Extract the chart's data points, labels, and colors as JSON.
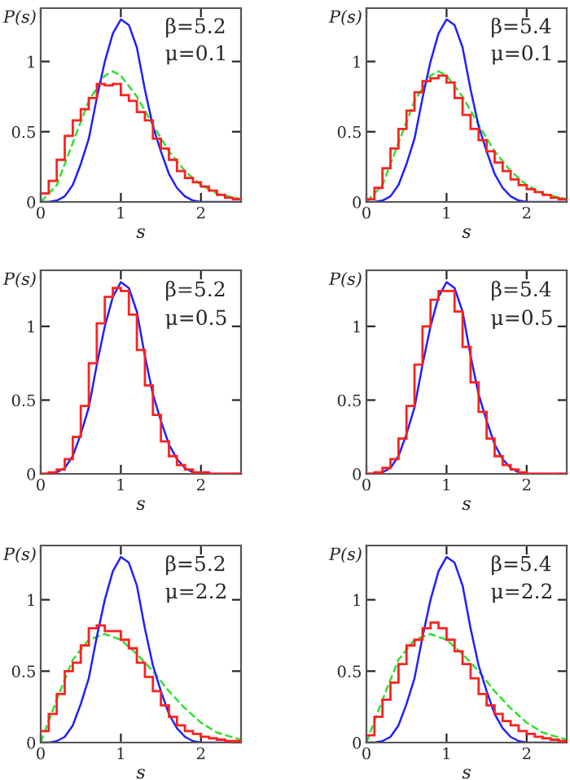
{
  "chart_data": [
    {
      "type": "histogram",
      "xlabel": "s",
      "ylabel": "P(s)",
      "annotations": [
        "β=5.2",
        "μ=0.1"
      ],
      "xlim": [
        0,
        2.5
      ],
      "ylim": [
        0,
        1.38
      ],
      "xticks": [
        0,
        1,
        2
      ],
      "yticks": [
        0,
        0.5,
        1
      ],
      "line_style": "solid",
      "series": [
        {
          "type": "histogram",
          "color": "#ff2020",
          "bins": [
            0,
            0.1,
            0.2,
            0.3,
            0.4,
            0.5,
            0.6,
            0.7,
            0.8,
            0.9,
            1.0,
            1.1,
            1.2,
            1.3,
            1.4,
            1.5,
            1.6,
            1.7,
            1.8,
            1.9,
            2.0,
            2.1,
            2.2,
            2.3,
            2.4,
            2.5
          ],
          "values": [
            0.06,
            0.15,
            0.3,
            0.47,
            0.58,
            0.66,
            0.74,
            0.84,
            0.83,
            0.84,
            0.76,
            0.72,
            0.64,
            0.58,
            0.45,
            0.38,
            0.3,
            0.22,
            0.17,
            0.14,
            0.11,
            0.08,
            0.05,
            0.03,
            0.02
          ]
        },
        {
          "type": "line",
          "color": "#30e030",
          "line_style": "dashed",
          "x": [
            0,
            0.2,
            0.4,
            0.6,
            0.8,
            0.9,
            1.0,
            1.2,
            1.4,
            1.6,
            1.8,
            2.0,
            2.2,
            2.5
          ],
          "values": [
            0,
            0.12,
            0.42,
            0.72,
            0.9,
            0.93,
            0.9,
            0.75,
            0.55,
            0.36,
            0.22,
            0.12,
            0.06,
            0.02
          ]
        },
        {
          "type": "line",
          "color": "#2020ff",
          "x": [
            0,
            0.1,
            0.2,
            0.3,
            0.4,
            0.5,
            0.6,
            0.7,
            0.8,
            0.9,
            1.0,
            1.1,
            1.2,
            1.3,
            1.4,
            1.5,
            1.6,
            1.7,
            1.8,
            1.9,
            2.0,
            2.5
          ],
          "values": [
            0,
            0,
            0.01,
            0.04,
            0.12,
            0.27,
            0.45,
            0.74,
            1.0,
            1.2,
            1.3,
            1.26,
            1.1,
            0.8,
            0.54,
            0.36,
            0.2,
            0.1,
            0.04,
            0.01,
            0,
            0
          ]
        }
      ]
    },
    {
      "type": "histogram",
      "xlabel": "s",
      "ylabel": "P(s)",
      "annotations": [
        "β=5.4",
        "μ=0.1"
      ],
      "xlim": [
        0,
        2.5
      ],
      "ylim": [
        0,
        1.38
      ],
      "xticks": [
        0,
        1,
        2
      ],
      "yticks": [
        0,
        0.5,
        1
      ],
      "line_style": "solid",
      "series": [
        {
          "type": "histogram",
          "color": "#ff2020",
          "bins": [
            0,
            0.1,
            0.2,
            0.3,
            0.4,
            0.5,
            0.6,
            0.7,
            0.8,
            0.9,
            1.0,
            1.1,
            1.2,
            1.3,
            1.4,
            1.5,
            1.6,
            1.7,
            1.8,
            1.9,
            2.0,
            2.1,
            2.2,
            2.3,
            2.4,
            2.5
          ],
          "values": [
            0.02,
            0.1,
            0.24,
            0.38,
            0.52,
            0.65,
            0.78,
            0.86,
            0.88,
            0.9,
            0.85,
            0.74,
            0.62,
            0.52,
            0.44,
            0.36,
            0.28,
            0.22,
            0.16,
            0.12,
            0.09,
            0.07,
            0.05,
            0.03,
            0.02
          ]
        },
        {
          "type": "line",
          "color": "#30e030",
          "line_style": "dashed",
          "x": [
            0,
            0.2,
            0.4,
            0.6,
            0.8,
            0.9,
            1.0,
            1.2,
            1.4,
            1.6,
            1.8,
            2.0,
            2.2,
            2.5
          ],
          "values": [
            0,
            0.12,
            0.42,
            0.72,
            0.9,
            0.93,
            0.9,
            0.75,
            0.55,
            0.36,
            0.22,
            0.12,
            0.06,
            0.02
          ]
        },
        {
          "type": "line",
          "color": "#2020ff",
          "x": [
            0,
            0.1,
            0.2,
            0.3,
            0.4,
            0.5,
            0.6,
            0.7,
            0.8,
            0.9,
            1.0,
            1.1,
            1.2,
            1.3,
            1.4,
            1.5,
            1.6,
            1.7,
            1.8,
            1.9,
            2.0,
            2.5
          ],
          "values": [
            0,
            0,
            0.01,
            0.04,
            0.12,
            0.27,
            0.45,
            0.74,
            1.0,
            1.2,
            1.3,
            1.26,
            1.1,
            0.8,
            0.54,
            0.36,
            0.2,
            0.1,
            0.04,
            0.01,
            0,
            0
          ]
        }
      ]
    },
    {
      "type": "histogram",
      "xlabel": "s",
      "ylabel": "P(s)",
      "annotations": [
        "β=5.2",
        "μ=0.5"
      ],
      "xlim": [
        0,
        2.5
      ],
      "ylim": [
        0,
        1.38
      ],
      "xticks": [
        0,
        1,
        2
      ],
      "yticks": [
        0,
        0.5,
        1
      ],
      "line_style": "solid",
      "series": [
        {
          "type": "histogram",
          "color": "#ff2020",
          "bins": [
            0,
            0.1,
            0.2,
            0.3,
            0.4,
            0.5,
            0.6,
            0.7,
            0.8,
            0.9,
            1.0,
            1.1,
            1.2,
            1.3,
            1.4,
            1.5,
            1.6,
            1.7,
            1.8,
            1.9,
            2.0,
            2.1,
            2.2,
            2.3,
            2.4,
            2.5
          ],
          "values": [
            0,
            0.01,
            0.03,
            0.1,
            0.25,
            0.46,
            0.75,
            1.02,
            1.2,
            1.26,
            1.24,
            1.08,
            0.84,
            0.6,
            0.4,
            0.22,
            0.12,
            0.06,
            0.03,
            0.01,
            0.01,
            0,
            0,
            0,
            0
          ]
        },
        {
          "type": "line",
          "color": "#2020ff",
          "x": [
            0,
            0.1,
            0.2,
            0.3,
            0.4,
            0.5,
            0.6,
            0.7,
            0.8,
            0.9,
            1.0,
            1.1,
            1.2,
            1.3,
            1.4,
            1.5,
            1.6,
            1.7,
            1.8,
            1.9,
            2.0,
            2.5
          ],
          "values": [
            0,
            0,
            0.01,
            0.04,
            0.12,
            0.27,
            0.45,
            0.74,
            1.0,
            1.2,
            1.3,
            1.26,
            1.1,
            0.8,
            0.54,
            0.36,
            0.2,
            0.1,
            0.04,
            0.01,
            0,
            0
          ]
        }
      ]
    },
    {
      "type": "histogram",
      "xlabel": "s",
      "ylabel": "P(s)",
      "annotations": [
        "β=5.4",
        "μ=0.5"
      ],
      "xlim": [
        0,
        2.5
      ],
      "ylim": [
        0,
        1.38
      ],
      "xticks": [
        0,
        1,
        2
      ],
      "yticks": [
        0,
        0.5,
        1
      ],
      "line_style": "solid",
      "series": [
        {
          "type": "histogram",
          "color": "#ff2020",
          "bins": [
            0,
            0.1,
            0.2,
            0.3,
            0.4,
            0.5,
            0.6,
            0.7,
            0.8,
            0.9,
            1.0,
            1.1,
            1.2,
            1.3,
            1.4,
            1.5,
            1.6,
            1.7,
            1.8,
            1.9,
            2.0,
            2.1,
            2.2,
            2.3,
            2.4,
            2.5
          ],
          "values": [
            0,
            0.01,
            0.04,
            0.1,
            0.24,
            0.46,
            0.74,
            1.0,
            1.18,
            1.24,
            1.24,
            1.1,
            0.86,
            0.62,
            0.42,
            0.24,
            0.12,
            0.06,
            0.03,
            0.01,
            0,
            0,
            0,
            0,
            0
          ]
        },
        {
          "type": "line",
          "color": "#2020ff",
          "x": [
            0,
            0.1,
            0.2,
            0.3,
            0.4,
            0.5,
            0.6,
            0.7,
            0.8,
            0.9,
            1.0,
            1.1,
            1.2,
            1.3,
            1.4,
            1.5,
            1.6,
            1.7,
            1.8,
            1.9,
            2.0,
            2.5
          ],
          "values": [
            0,
            0,
            0.01,
            0.04,
            0.12,
            0.27,
            0.45,
            0.74,
            1.0,
            1.2,
            1.3,
            1.26,
            1.1,
            0.8,
            0.54,
            0.36,
            0.2,
            0.1,
            0.04,
            0.01,
            0,
            0
          ]
        }
      ]
    },
    {
      "type": "histogram",
      "xlabel": "s",
      "ylabel": "P(s)",
      "annotations": [
        "β=5.2",
        "μ=2.2"
      ],
      "xlim": [
        0,
        2.5
      ],
      "ylim": [
        0,
        1.38
      ],
      "xticks": [
        0,
        1,
        2
      ],
      "yticks": [
        0,
        0.5,
        1
      ],
      "line_style": "solid",
      "series": [
        {
          "type": "histogram",
          "color": "#ff2020",
          "bins": [
            0,
            0.1,
            0.2,
            0.3,
            0.4,
            0.5,
            0.6,
            0.7,
            0.8,
            0.9,
            1.0,
            1.1,
            1.2,
            1.3,
            1.4,
            1.5,
            1.6,
            1.7,
            1.8,
            1.9,
            2.0,
            2.1,
            2.2,
            2.3,
            2.4,
            2.5
          ],
          "values": [
            0.08,
            0.2,
            0.34,
            0.5,
            0.56,
            0.68,
            0.8,
            0.82,
            0.78,
            0.78,
            0.72,
            0.66,
            0.56,
            0.46,
            0.36,
            0.26,
            0.18,
            0.12,
            0.08,
            0.06,
            0.04,
            0.03,
            0.02,
            0.01,
            0.01
          ]
        },
        {
          "type": "line",
          "color": "#30e030",
          "line_style": "dashed",
          "x": [
            0,
            0.2,
            0.4,
            0.6,
            0.8,
            1.0,
            1.2,
            1.4,
            1.6,
            1.8,
            2.0,
            2.2,
            2.5
          ],
          "values": [
            0,
            0.3,
            0.58,
            0.72,
            0.76,
            0.72,
            0.62,
            0.5,
            0.36,
            0.24,
            0.14,
            0.07,
            0.02
          ]
        },
        {
          "type": "line",
          "color": "#2020ff",
          "x": [
            0,
            0.1,
            0.2,
            0.3,
            0.4,
            0.5,
            0.6,
            0.7,
            0.8,
            0.9,
            1.0,
            1.1,
            1.2,
            1.3,
            1.4,
            1.5,
            1.6,
            1.7,
            1.8,
            1.9,
            2.0,
            2.5
          ],
          "values": [
            0,
            0,
            0.01,
            0.04,
            0.12,
            0.27,
            0.45,
            0.74,
            1.0,
            1.2,
            1.3,
            1.26,
            1.1,
            0.8,
            0.54,
            0.36,
            0.2,
            0.1,
            0.04,
            0.01,
            0,
            0
          ]
        }
      ]
    },
    {
      "type": "histogram",
      "xlabel": "s",
      "ylabel": "P(s)",
      "annotations": [
        "β=5.4",
        "μ=2.2"
      ],
      "xlim": [
        0,
        2.5
      ],
      "ylim": [
        0,
        1.38
      ],
      "xticks": [
        0,
        1,
        2
      ],
      "yticks": [
        0,
        0.5,
        1
      ],
      "line_style": "solid",
      "series": [
        {
          "type": "histogram",
          "color": "#ff2020",
          "bins": [
            0,
            0.1,
            0.2,
            0.3,
            0.4,
            0.5,
            0.6,
            0.7,
            0.8,
            0.9,
            1.0,
            1.1,
            1.2,
            1.3,
            1.4,
            1.5,
            1.6,
            1.7,
            1.8,
            1.9,
            2.0,
            2.1,
            2.2,
            2.3,
            2.4,
            2.5
          ],
          "values": [
            0.05,
            0.18,
            0.3,
            0.42,
            0.55,
            0.68,
            0.72,
            0.8,
            0.84,
            0.8,
            0.72,
            0.64,
            0.55,
            0.45,
            0.34,
            0.26,
            0.2,
            0.15,
            0.12,
            0.08,
            0.06,
            0.04,
            0.03,
            0.02,
            0.01
          ]
        },
        {
          "type": "line",
          "color": "#30e030",
          "line_style": "dashed",
          "x": [
            0,
            0.2,
            0.4,
            0.6,
            0.8,
            1.0,
            1.2,
            1.4,
            1.6,
            1.8,
            2.0,
            2.2,
            2.5
          ],
          "values": [
            0,
            0.3,
            0.58,
            0.72,
            0.76,
            0.72,
            0.62,
            0.5,
            0.36,
            0.24,
            0.14,
            0.07,
            0.02
          ]
        },
        {
          "type": "line",
          "color": "#2020ff",
          "x": [
            0,
            0.1,
            0.2,
            0.3,
            0.4,
            0.5,
            0.6,
            0.7,
            0.8,
            0.9,
            1.0,
            1.1,
            1.2,
            1.3,
            1.4,
            1.5,
            1.6,
            1.7,
            1.8,
            1.9,
            2.0,
            2.5
          ],
          "values": [
            0,
            0,
            0.01,
            0.04,
            0.12,
            0.27,
            0.45,
            0.74,
            1.0,
            1.2,
            1.3,
            1.26,
            1.1,
            0.8,
            0.54,
            0.36,
            0.2,
            0.1,
            0.04,
            0.01,
            0,
            0
          ]
        }
      ]
    }
  ]
}
